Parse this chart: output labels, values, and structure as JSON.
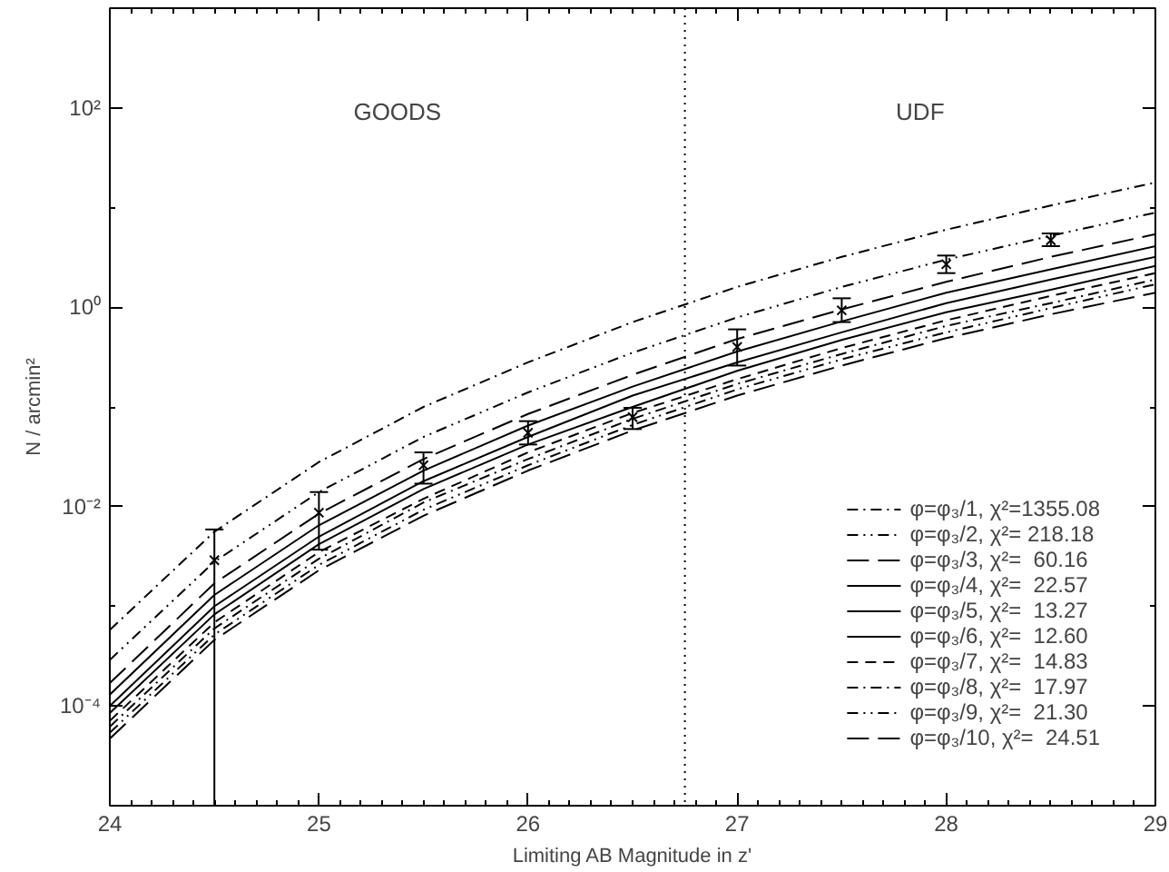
{
  "chart_data": {
    "type": "line",
    "xlabel": "Limiting AB Magnitude in z'",
    "ylabel": "N / arcmin²",
    "x": [
      24,
      24.5,
      25,
      25.5,
      26,
      26.5,
      27,
      27.5,
      28,
      28.5,
      29
    ],
    "xlim": [
      24,
      29
    ],
    "xticks": [
      24,
      25,
      26,
      27,
      28,
      29
    ],
    "log": "y",
    "ylim": [
      1e-05,
      1000
    ],
    "yticks": [
      {
        "value": 0.0001,
        "label": "10⁻⁴"
      },
      {
        "value": 0.01,
        "label": "10⁻²"
      },
      {
        "value": 1,
        "label": "10⁰"
      },
      {
        "value": 100,
        "label": "10²"
      },
      {
        "value": 0.001,
        "label": null
      },
      {
        "value": 0.1,
        "label": null
      },
      {
        "value": 10,
        "label": null
      }
    ],
    "grid": false,
    "legend": "bottom right",
    "series": [
      {
        "name": "φ=φ₃/1, χ²=1355.08",
        "color": "#000000",
        "line_style": "dashdot",
        "values": [
          0.00058,
          0.0056,
          0.028,
          0.1,
          0.28,
          0.71,
          1.6,
          3.2,
          6.0,
          10.5,
          17.8
        ]
      },
      {
        "name": "φ=φ₃/2, χ²= 218.18",
        "color": "#000000",
        "line_style": "dashdotdot",
        "values": [
          0.00029,
          0.0028,
          0.014,
          0.05,
          0.14,
          0.35,
          0.79,
          1.6,
          3.0,
          5.2,
          8.9
        ]
      },
      {
        "name": "φ=φ₃/3, χ²=  60.16",
        "color": "#000000",
        "line_style": "longdash",
        "values": [
          0.00017,
          0.0017,
          0.0085,
          0.03,
          0.085,
          0.21,
          0.48,
          0.95,
          1.8,
          3.2,
          5.4
        ]
      },
      {
        "name": "φ=φ₃/4, χ²=  22.57",
        "color": "#000000",
        "line_style": "solid",
        "values": [
          0.00013,
          0.0013,
          0.0065,
          0.023,
          0.065,
          0.16,
          0.36,
          0.72,
          1.4,
          2.4,
          4.1
        ]
      },
      {
        "name": "φ=φ₃/5, χ²=  13.27",
        "color": "#000000",
        "line_style": "solid",
        "values": [
          0.0001,
          0.001,
          0.005,
          0.018,
          0.05,
          0.13,
          0.28,
          0.56,
          1.1,
          1.9,
          3.2
        ]
      },
      {
        "name": "φ=φ₃/6, χ²=  12.60",
        "color": "#000000",
        "line_style": "solid",
        "values": [
          8.5e-05,
          0.00083,
          0.0042,
          0.015,
          0.042,
          0.1,
          0.23,
          0.47,
          0.89,
          1.5,
          2.6
        ]
      },
      {
        "name": "φ=φ₃/7, χ²=  14.83",
        "color": "#000000",
        "line_style": "dashed",
        "values": [
          7.1e-05,
          0.00069,
          0.0035,
          0.012,
          0.035,
          0.087,
          0.19,
          0.39,
          0.74,
          1.3,
          2.2
        ]
      },
      {
        "name": "φ=φ₃/8, χ²=  17.97",
        "color": "#000000",
        "line_style": "dashdot",
        "values": [
          6.2e-05,
          0.0006,
          0.003,
          0.011,
          0.03,
          0.076,
          0.17,
          0.34,
          0.65,
          1.1,
          1.9
        ]
      },
      {
        "name": "φ=φ₃/9, χ²=  21.30",
        "color": "#000000",
        "line_style": "dashdotdot",
        "values": [
          5.4e-05,
          0.00052,
          0.0026,
          0.0093,
          0.026,
          0.066,
          0.15,
          0.3,
          0.56,
          0.98,
          1.7
        ]
      },
      {
        "name": "φ=φ₃/10, χ²=  24.51",
        "color": "#000000",
        "line_style": "longdash",
        "values": [
          4.7e-05,
          0.00046,
          0.0023,
          0.0081,
          0.023,
          0.058,
          0.13,
          0.26,
          0.49,
          0.85,
          1.4
        ]
      },
      {
        "type": "scatter",
        "color": "#000000",
        "marker": "cross",
        "x": [
          24.5,
          25,
          25.5,
          26,
          26.5,
          27,
          27.5,
          28,
          28.5
        ],
        "values": [
          0.0029,
          0.0087,
          0.026,
          0.055,
          0.079,
          0.4,
          0.93,
          2.7,
          4.7
        ],
        "errors": [
          [
            1e-05,
            0.0059
          ],
          [
            0.0037,
            0.014
          ],
          [
            0.017,
            0.035
          ],
          [
            0.042,
            0.072
          ],
          [
            0.06,
            0.098
          ],
          [
            0.26,
            0.6
          ],
          [
            0.71,
            1.23
          ],
          [
            2.2,
            3.3
          ],
          [
            4.1,
            5.5
          ]
        ]
      }
    ],
    "ref_lines": [
      {
        "axis": "x",
        "value": 26.75,
        "line_style": "dotted"
      }
    ],
    "annotations": [
      "GOODS",
      "UDF"
    ]
  }
}
